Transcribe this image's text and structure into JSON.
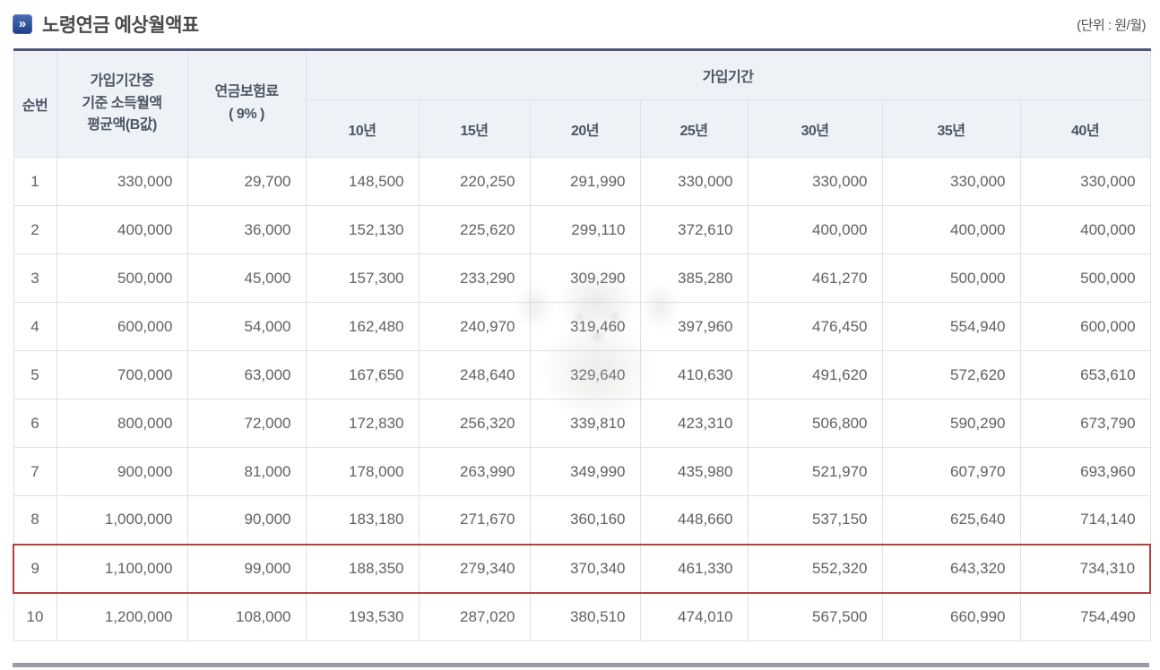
{
  "page": {
    "title": "노령연금 예상월액표",
    "unit_label": "(단위 : 원/월)"
  },
  "icons": {
    "section_bullet": "chevron-right-in-blue-square",
    "section_bullet_glyph": "»"
  },
  "colors": {
    "accent_red": "#b4403e",
    "header_bg": "#eef2f6",
    "table_top_border": "#4a5578",
    "grid_line": "#dbe2ea",
    "title_icon_blue": "#2b4c9b",
    "text_dark": "#4a4a4a",
    "cell_text": "#5e6266",
    "bottom_divider": "#989ca3"
  },
  "table": {
    "headers": {
      "seq": "순번",
      "base_income_lines": [
        "가입기간중",
        "기준 소득월액",
        "평균액(B값)"
      ],
      "premium_lines": [
        "연금보험료",
        "( 9% )"
      ],
      "period_group": "가입기간",
      "periods": [
        "10년",
        "15년",
        "20년",
        "25년",
        "30년",
        "35년",
        "40년"
      ]
    },
    "highlighted_row": 9,
    "rows": [
      {
        "no": "1",
        "base": "330,000",
        "premium": "29,700",
        "values": [
          "148,500",
          "220,250",
          "291,990",
          "330,000",
          "330,000",
          "330,000",
          "330,000"
        ]
      },
      {
        "no": "2",
        "base": "400,000",
        "premium": "36,000",
        "values": [
          "152,130",
          "225,620",
          "299,110",
          "372,610",
          "400,000",
          "400,000",
          "400,000"
        ]
      },
      {
        "no": "3",
        "base": "500,000",
        "premium": "45,000",
        "values": [
          "157,300",
          "233,290",
          "309,290",
          "385,280",
          "461,270",
          "500,000",
          "500,000"
        ]
      },
      {
        "no": "4",
        "base": "600,000",
        "premium": "54,000",
        "values": [
          "162,480",
          "240,970",
          "319,460",
          "397,960",
          "476,450",
          "554,940",
          "600,000"
        ]
      },
      {
        "no": "5",
        "base": "700,000",
        "premium": "63,000",
        "values": [
          "167,650",
          "248,640",
          "329,640",
          "410,630",
          "491,620",
          "572,620",
          "653,610"
        ]
      },
      {
        "no": "6",
        "base": "800,000",
        "premium": "72,000",
        "values": [
          "172,830",
          "256,320",
          "339,810",
          "423,310",
          "506,800",
          "590,290",
          "673,790"
        ]
      },
      {
        "no": "7",
        "base": "900,000",
        "premium": "81,000",
        "values": [
          "178,000",
          "263,990",
          "349,990",
          "435,980",
          "521,970",
          "607,970",
          "693,960"
        ]
      },
      {
        "no": "8",
        "base": "1,000,000",
        "premium": "90,000",
        "values": [
          "183,180",
          "271,670",
          "360,160",
          "448,660",
          "537,150",
          "625,640",
          "714,140"
        ]
      },
      {
        "no": "9",
        "base": "1,100,000",
        "premium": "99,000",
        "values": [
          "188,350",
          "279,340",
          "370,340",
          "461,330",
          "552,320",
          "643,320",
          "734,310"
        ]
      },
      {
        "no": "10",
        "base": "1,200,000",
        "premium": "108,000",
        "values": [
          "193,530",
          "287,020",
          "380,510",
          "474,010",
          "567,500",
          "660,990",
          "754,490"
        ]
      }
    ]
  }
}
